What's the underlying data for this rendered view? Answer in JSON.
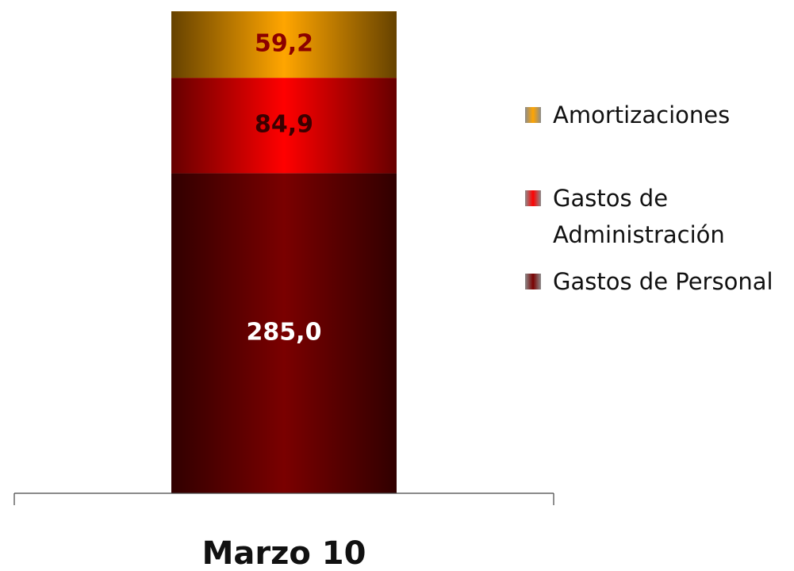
{
  "chart_data": {
    "type": "stacked_bar",
    "categories": [
      "Marzo 10"
    ],
    "series": [
      {
        "name": "Gastos de Personal",
        "color": "#7a0000",
        "label_color": "#ffffff",
        "values": [
          285.0
        ],
        "value_labels": [
          "285,0"
        ]
      },
      {
        "name": "Gastos de Administración",
        "color": "#ff0000",
        "label_color": "#3a0000",
        "values": [
          84.9
        ],
        "value_labels": [
          "84,9"
        ]
      },
      {
        "name": "Amortizaciones",
        "color": "#ffa500",
        "label_color": "#8b0000",
        "values": [
          59.2
        ],
        "value_labels": [
          "59,2"
        ]
      }
    ],
    "ylim": [
      0,
      430
    ],
    "legend": "right"
  }
}
